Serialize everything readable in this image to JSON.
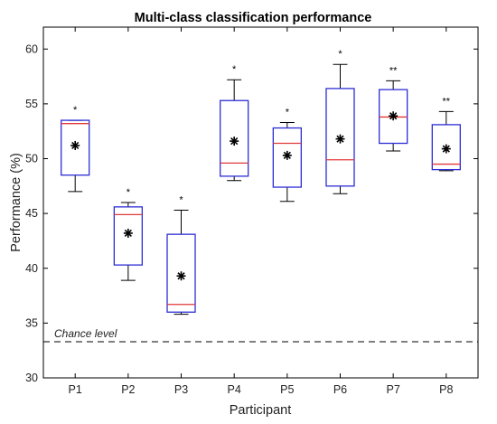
{
  "chart_data": {
    "type": "box",
    "title": "Multi-class classification performance",
    "xlabel": "Participant",
    "ylabel": "Performance (%)",
    "categories": [
      "P1",
      "P2",
      "P3",
      "P4",
      "P5",
      "P6",
      "P7",
      "P8"
    ],
    "ylim": [
      30,
      62
    ],
    "yticks": [
      30,
      35,
      40,
      45,
      50,
      55,
      60
    ],
    "grid": false,
    "series": [
      {
        "boxes": [
          {
            "category": "P1",
            "whisker_low": 47.0,
            "q1": 48.5,
            "median": 53.2,
            "q3": 53.5,
            "whisker_high": 53.5,
            "mean": 51.2,
            "significance": "*"
          },
          {
            "category": "P2",
            "whisker_low": 38.9,
            "q1": 40.3,
            "median": 44.9,
            "q3": 45.6,
            "whisker_high": 46.0,
            "mean": 43.2,
            "significance": "*"
          },
          {
            "category": "P3",
            "whisker_low": 35.8,
            "q1": 36.0,
            "median": 36.7,
            "q3": 43.1,
            "whisker_high": 45.3,
            "mean": 39.3,
            "significance": "*"
          },
          {
            "category": "P4",
            "whisker_low": 48.0,
            "q1": 48.4,
            "median": 49.6,
            "q3": 55.3,
            "whisker_high": 57.2,
            "mean": 51.6,
            "significance": "*"
          },
          {
            "category": "P5",
            "whisker_low": 46.1,
            "q1": 47.4,
            "median": 51.4,
            "q3": 52.8,
            "whisker_high": 53.3,
            "mean": 50.3,
            "significance": "*"
          },
          {
            "category": "P6",
            "whisker_low": 46.8,
            "q1": 47.5,
            "median": 49.9,
            "q3": 56.4,
            "whisker_high": 58.6,
            "mean": 51.8,
            "significance": "*"
          },
          {
            "category": "P7",
            "whisker_low": 50.7,
            "q1": 51.4,
            "median": 53.8,
            "q3": 56.3,
            "whisker_high": 57.1,
            "mean": 53.9,
            "significance": "**"
          },
          {
            "category": "P8",
            "whisker_low": 48.9,
            "q1": 49.0,
            "median": 49.5,
            "q3": 53.1,
            "whisker_high": 54.3,
            "mean": 50.9,
            "significance": "**"
          }
        ]
      }
    ],
    "reference_line": {
      "label": "Chance level",
      "value": 33.3,
      "style": "dashed"
    },
    "colors": {
      "box": "#2d2dd6",
      "median": "#e03a3a",
      "whisker": "#000000",
      "mean_marker": "#000000"
    }
  }
}
